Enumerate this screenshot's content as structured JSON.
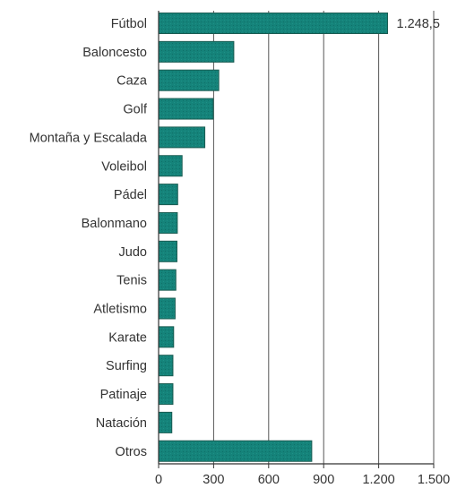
{
  "chart_data": {
    "type": "bar",
    "orientation": "horizontal",
    "title": "",
    "xlabel": "",
    "ylabel": "",
    "categories": [
      "Fútbol",
      "Baloncesto",
      "Caza",
      "Golf",
      "Montaña y Escalada",
      "Voleibol",
      "Pádel",
      "Balonmano",
      "Judo",
      "Tenis",
      "Atletismo",
      "Karate",
      "Surfing",
      "Patinaje",
      "Natación",
      "Otros"
    ],
    "values": [
      1248.5,
      410,
      328,
      298,
      252,
      128,
      104,
      102,
      100,
      94,
      90,
      82,
      78,
      78,
      72,
      835
    ],
    "data_labels": [
      {
        "index": 0,
        "text": "1.248,5"
      }
    ],
    "xlim": [
      0,
      1500
    ],
    "xticks": [
      0,
      300,
      600,
      900,
      1200,
      1500
    ],
    "xtick_labels": [
      "0",
      "300",
      "600",
      "900",
      "1.200",
      "1.500"
    ],
    "grid": "vertical",
    "legend": "none",
    "colors": {
      "bar": "#15837a",
      "bar_edge": "#1a5c52",
      "grid": "#555555",
      "text": "#333333"
    }
  }
}
